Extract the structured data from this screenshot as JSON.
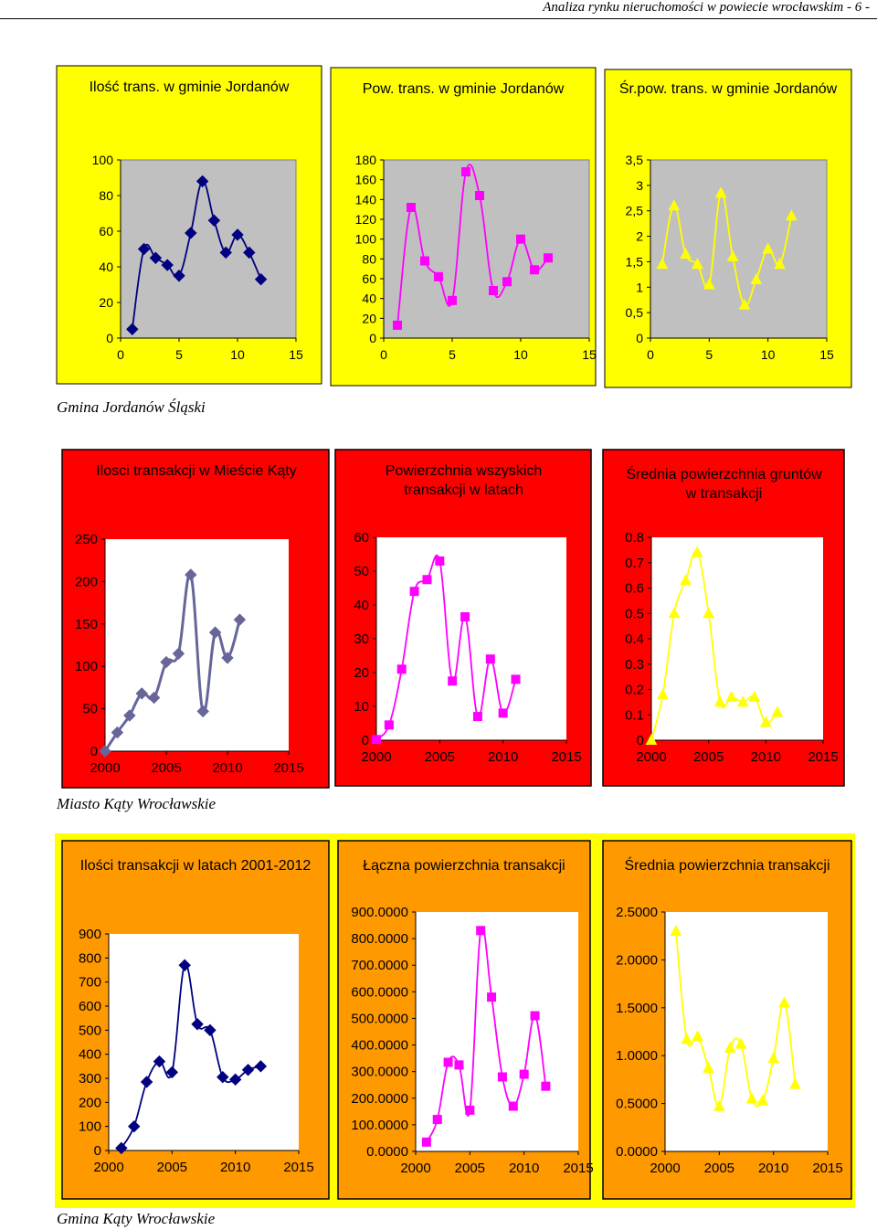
{
  "header": {
    "text": "Analiza rynku nieruchomości w powiecie wrocławskim - 6 -"
  },
  "sections": [
    {
      "caption": "Gmina Jordanów Śląski",
      "colors": {
        "bg": "#ffff00",
        "plot": "#c0c0c0"
      },
      "charts": [
        {
          "title": "Ilość trans. w gminie Jordanów",
          "type": "line",
          "color": "#000080",
          "marker": "diamond",
          "xticks": [
            "0",
            "5",
            "10",
            "15"
          ],
          "xlim": [
            0,
            15
          ],
          "yticks": [
            "0",
            "20",
            "40",
            "60",
            "80",
            "100"
          ],
          "ylim": [
            0,
            100
          ],
          "x": [
            1,
            2,
            3,
            4,
            5,
            6,
            7,
            8,
            9,
            10,
            11,
            12
          ],
          "values": [
            5,
            50,
            45,
            41,
            35,
            59,
            88,
            66,
            48,
            58,
            48,
            33
          ]
        },
        {
          "title": "Pow. trans. w gminie Jordanów",
          "type": "line",
          "color": "#ff00ff",
          "marker": "square",
          "xticks": [
            "0",
            "5",
            "10",
            "15"
          ],
          "xlim": [
            0,
            15
          ],
          "yticks": [
            "0",
            "20",
            "40",
            "60",
            "80",
            "100",
            "120",
            "140",
            "160",
            "180"
          ],
          "ylim": [
            0,
            180
          ],
          "x": [
            1,
            2,
            3,
            4,
            5,
            6,
            7,
            8,
            9,
            10,
            11,
            12
          ],
          "values": [
            13,
            132,
            78,
            62,
            38,
            168,
            144,
            48,
            57,
            100,
            69,
            81
          ]
        },
        {
          "title": "Śr.pow. trans. w gminie Jordanów",
          "type": "line",
          "color": "#ffff00",
          "marker": "triangle",
          "xticks": [
            "0",
            "5",
            "10",
            "15"
          ],
          "xlim": [
            0,
            15
          ],
          "yticks": [
            "0",
            "0,5",
            "1",
            "1,5",
            "2",
            "2,5",
            "3",
            "3,5"
          ],
          "ylim": [
            0,
            3.5
          ],
          "x": [
            1,
            2,
            3,
            4,
            5,
            6,
            7,
            8,
            9,
            10,
            11,
            12
          ],
          "values": [
            1.45,
            2.6,
            1.65,
            1.45,
            1.05,
            2.85,
            1.6,
            0.65,
            1.15,
            1.75,
            1.45,
            2.4
          ]
        }
      ]
    },
    {
      "caption": "Miasto Kąty Wrocławskie",
      "colors": {
        "bg": "#ff0000",
        "plot": "#ffffff"
      },
      "charts": [
        {
          "title": "Ilosci transakcji w Mieście Kąty",
          "type": "line",
          "color": "#666699",
          "marker": "diamond",
          "xticks": [
            "2000",
            "2005",
            "2010",
            "2015"
          ],
          "xlim": [
            2000,
            2015
          ],
          "yticks": [
            "0",
            "50",
            "100",
            "150",
            "200",
            "250"
          ],
          "ylim": [
            0,
            250
          ],
          "x": [
            2000,
            2001,
            2002,
            2003,
            2004,
            2005,
            2006,
            2007,
            2008,
            2009,
            2010,
            2011
          ],
          "values": [
            0,
            22,
            42,
            68,
            63,
            105,
            115,
            208,
            47,
            140,
            110,
            155
          ]
        },
        {
          "title": "Powierzchnia wszyskich transakcji w latach",
          "type": "line",
          "color": "#ff00ff",
          "marker": "square",
          "xticks": [
            "2000",
            "2005",
            "2010",
            "2015"
          ],
          "xlim": [
            2000,
            2015
          ],
          "yticks": [
            "0",
            "10",
            "20",
            "30",
            "40",
            "50",
            "60"
          ],
          "ylim": [
            0,
            60
          ],
          "x": [
            2000,
            2001,
            2002,
            2003,
            2004,
            2005,
            2006,
            2007,
            2008,
            2009,
            2010,
            2011
          ],
          "values": [
            0.2,
            4.5,
            21,
            44,
            47.5,
            53,
            17.5,
            36.5,
            7,
            24,
            8,
            18
          ]
        },
        {
          "title": "Średnia powierzchnia gruntów w transakcji",
          "type": "line",
          "color": "#ffff00",
          "marker": "triangle",
          "xticks": [
            "2000",
            "2005",
            "2010",
            "2015"
          ],
          "xlim": [
            2000,
            2015
          ],
          "yticks": [
            "0",
            "0.1",
            "0.2",
            "0.3",
            "0.4",
            "0.5",
            "0.6",
            "0.7",
            "0.8"
          ],
          "ylim": [
            0,
            0.8
          ],
          "x": [
            2000,
            2001,
            2002,
            2003,
            2004,
            2005,
            2006,
            2007,
            2008,
            2009,
            2010,
            2011
          ],
          "values": [
            0,
            0.18,
            0.5,
            0.63,
            0.74,
            0.5,
            0.15,
            0.17,
            0.15,
            0.17,
            0.07,
            0.11
          ]
        }
      ]
    },
    {
      "caption": "Gmina Kąty Wrocławskie",
      "colors": {
        "bg": "#ff9900",
        "plot": "#ffffff"
      },
      "charts": [
        {
          "title": "Ilości transakcji w latach 2001-2012",
          "type": "line",
          "color": "#000080",
          "marker": "diamond",
          "xticks": [
            "2000",
            "2005",
            "2010",
            "2015"
          ],
          "xlim": [
            2000,
            2015
          ],
          "yticks": [
            "0",
            "100",
            "200",
            "300",
            "400",
            "500",
            "600",
            "700",
            "800",
            "900"
          ],
          "ylim": [
            0,
            900
          ],
          "x": [
            2001,
            2002,
            2003,
            2004,
            2005,
            2006,
            2007,
            2008,
            2009,
            2010,
            2011,
            2012
          ],
          "values": [
            10,
            100,
            285,
            370,
            325,
            770,
            525,
            500,
            305,
            295,
            335,
            350
          ]
        },
        {
          "title": "Łączna powierzchnia transakcji",
          "type": "line",
          "color": "#ff00ff",
          "marker": "square",
          "xticks": [
            "2000",
            "2005",
            "2010",
            "2015"
          ],
          "xlim": [
            2000,
            2015
          ],
          "yticks": [
            "0.0000",
            "100.0000",
            "200.0000",
            "300.0000",
            "400.0000",
            "500.0000",
            "600.0000",
            "700.0000",
            "800.0000",
            "900.0000"
          ],
          "ylim": [
            0,
            900
          ],
          "x": [
            2001,
            2002,
            2003,
            2004,
            2005,
            2006,
            2007,
            2008,
            2009,
            2010,
            2011,
            2012
          ],
          "values": [
            35,
            120,
            335,
            325,
            155,
            830,
            580,
            280,
            170,
            290,
            510,
            245
          ]
        },
        {
          "title": "Średnia powierzchnia transakcji",
          "type": "line",
          "color": "#ffff00",
          "marker": "triangle",
          "xticks": [
            "2000",
            "2005",
            "2010",
            "2015"
          ],
          "xlim": [
            2000,
            2015
          ],
          "yticks": [
            "0.0000",
            "0.5000",
            "1.0000",
            "1.5000",
            "2.0000",
            "2.5000"
          ],
          "ylim": [
            0,
            2.5
          ],
          "x": [
            2001,
            2002,
            2003,
            2004,
            2005,
            2006,
            2007,
            2008,
            2009,
            2010,
            2011,
            2012
          ],
          "values": [
            2.3,
            1.17,
            1.2,
            0.87,
            0.47,
            1.08,
            1.12,
            0.55,
            0.53,
            0.97,
            1.55,
            0.7
          ]
        }
      ]
    }
  ]
}
